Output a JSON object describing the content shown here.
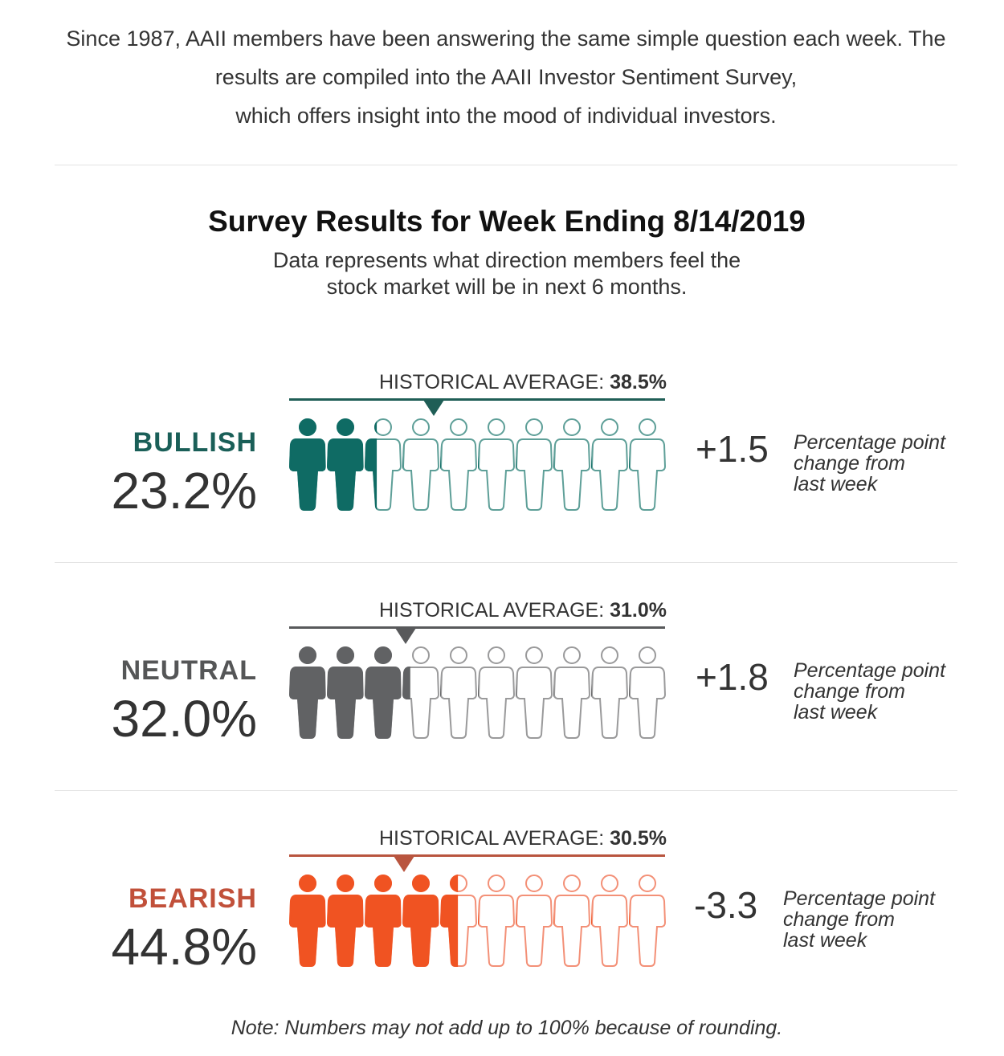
{
  "intro": {
    "line1": "Since 1987, AAII members have been answering the same simple question each week. The",
    "line2": "results are compiled into the AAII Investor Sentiment Survey,",
    "line3": "which offers insight into the mood of individual investors."
  },
  "survey": {
    "title": "Survey Results for Week Ending 8/14/2019",
    "subtitle1": "Data represents what direction members feel the",
    "subtitle2": "stock market will be in next 6 months."
  },
  "historical_prefix": "HISTORICAL AVERAGE: ",
  "change_caption": [
    "Percentage point",
    "change from",
    "last week"
  ],
  "sections": [
    {
      "label": "BULLISH",
      "percent": "23.2%",
      "value": 23.2,
      "historical": "38.5%",
      "historical_value": 38.5,
      "change": "+1.5",
      "color": "#0f6b64",
      "label_color": "#1a5f58",
      "line_color": "#1f5e56",
      "outline_color": "#5e9f98"
    },
    {
      "label": "NEUTRAL",
      "percent": "32.0%",
      "value": 32.0,
      "historical": "31.0%",
      "historical_value": 31.0,
      "change": "+1.8",
      "color": "#616264",
      "label_color": "#555657",
      "line_color": "#58595b",
      "outline_color": "#9a9a9b"
    },
    {
      "label": "BEARISH",
      "percent": "44.8%",
      "value": 44.8,
      "historical": "30.5%",
      "historical_value": 30.5,
      "change": "-3.3",
      "color": "#f05322",
      "label_color": "#c1503a",
      "line_color": "#b9553f",
      "outline_color": "#f39077"
    }
  ],
  "icons": {
    "figure": "person-icon",
    "marker": "triangle-down-icon"
  },
  "note": "Note: Numbers may not add up to 100% because of rounding."
}
